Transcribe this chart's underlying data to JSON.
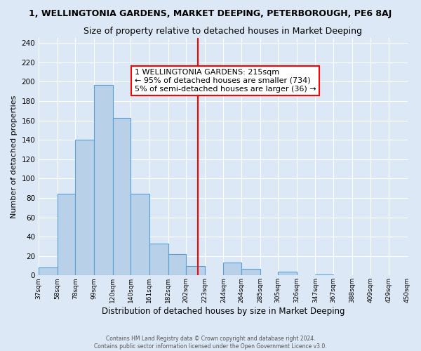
{
  "title": "1, WELLINGTONIA GARDENS, MARKET DEEPING, PETERBOROUGH, PE6 8AJ",
  "subtitle": "Size of property relative to detached houses in Market Deeping",
  "xlabel": "Distribution of detached houses by size in Market Deeping",
  "ylabel": "Number of detached properties",
  "bin_labels": [
    "37sqm",
    "58sqm",
    "78sqm",
    "99sqm",
    "120sqm",
    "140sqm",
    "161sqm",
    "182sqm",
    "202sqm",
    "223sqm",
    "244sqm",
    "264sqm",
    "285sqm",
    "305sqm",
    "326sqm",
    "347sqm",
    "367sqm",
    "388sqm",
    "409sqm",
    "429sqm",
    "450sqm"
  ],
  "bin_edges": [
    37,
    58,
    78,
    99,
    120,
    140,
    161,
    182,
    202,
    223,
    244,
    264,
    285,
    305,
    326,
    347,
    367,
    388,
    409,
    429,
    450
  ],
  "bar_heights": [
    8,
    84,
    140,
    197,
    163,
    84,
    33,
    22,
    10,
    0,
    13,
    7,
    0,
    4,
    0,
    1,
    0,
    0,
    0,
    0,
    1
  ],
  "bar_color": "#b8d0e8",
  "bar_edge_color": "#5a9fd4",
  "vline_x": 215,
  "vline_color": "red",
  "annotation_title": "1 WELLINGTONIA GARDENS: 215sqm",
  "annotation_line1": "← 95% of detached houses are smaller (734)",
  "annotation_line2": "5% of semi-detached houses are larger (36) →",
  "annotation_box_color": "white",
  "annotation_box_edge_color": "red",
  "ylim": [
    0,
    245
  ],
  "yticks": [
    0,
    20,
    40,
    60,
    80,
    100,
    120,
    140,
    160,
    180,
    200,
    220,
    240
  ],
  "footer1": "Contains HM Land Registry data © Crown copyright and database right 2024.",
  "footer2": "Contains public sector information licensed under the Open Government Licence v3.0.",
  "bg_color": "#dce8f5",
  "grid_color": "#ffffff",
  "title_fontsize": 9,
  "subtitle_fontsize": 9,
  "annotation_fontsize": 8
}
